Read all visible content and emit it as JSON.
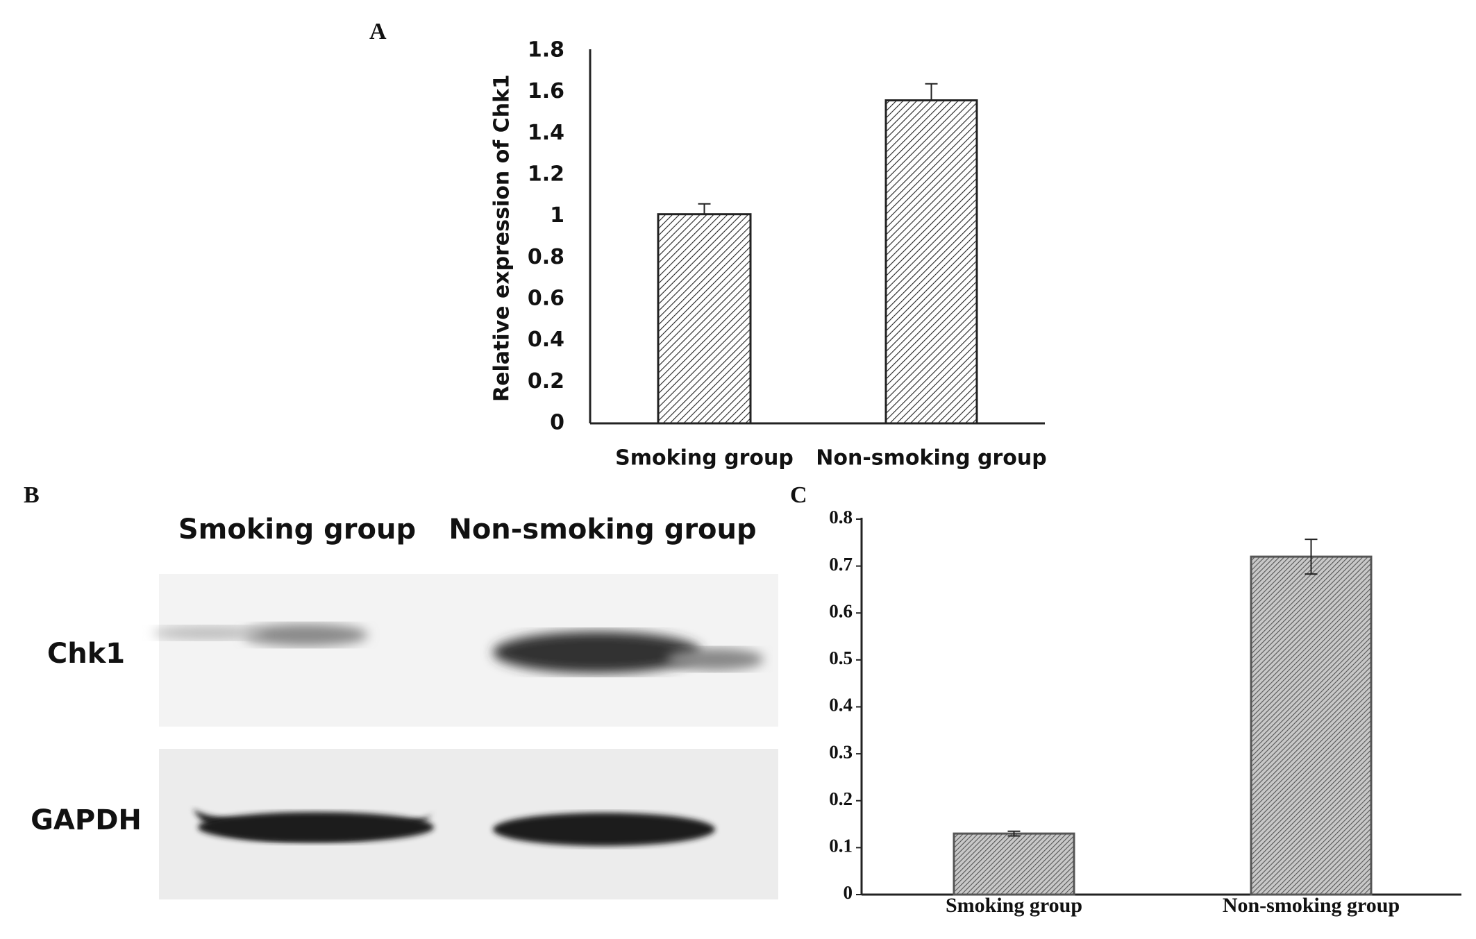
{
  "chart_data": [
    {
      "type": "bar",
      "label": "A",
      "ylabel": "Relative expression of  Chk1",
      "categories": [
        "Smoking group",
        "Non-smoking group"
      ],
      "values": [
        1.01,
        1.56
      ],
      "errors": [
        0.05,
        0.08
      ],
      "color": "#222222",
      "ylim": [
        0,
        1.8
      ],
      "yticks": [
        0,
        0.2,
        0.4,
        0.6,
        0.8,
        1,
        1.2,
        1.4,
        1.6,
        1.8
      ]
    },
    {
      "type": "bar",
      "label": "C",
      "categories": [
        "Smoking group",
        "Non-smoking group"
      ],
      "values": [
        0.13,
        0.72
      ],
      "errors": [
        0.005,
        0.037
      ],
      "color": "#555555",
      "ylim": [
        0,
        0.8
      ],
      "yticks": [
        0,
        0.1,
        0.2,
        0.3,
        0.4,
        0.5,
        0.6,
        0.7,
        0.8
      ]
    }
  ],
  "blot": {
    "label": "B",
    "lanes": [
      "Smoking group",
      "Non-smoking group"
    ],
    "bands": [
      "Chk1",
      "GAPDH"
    ]
  }
}
